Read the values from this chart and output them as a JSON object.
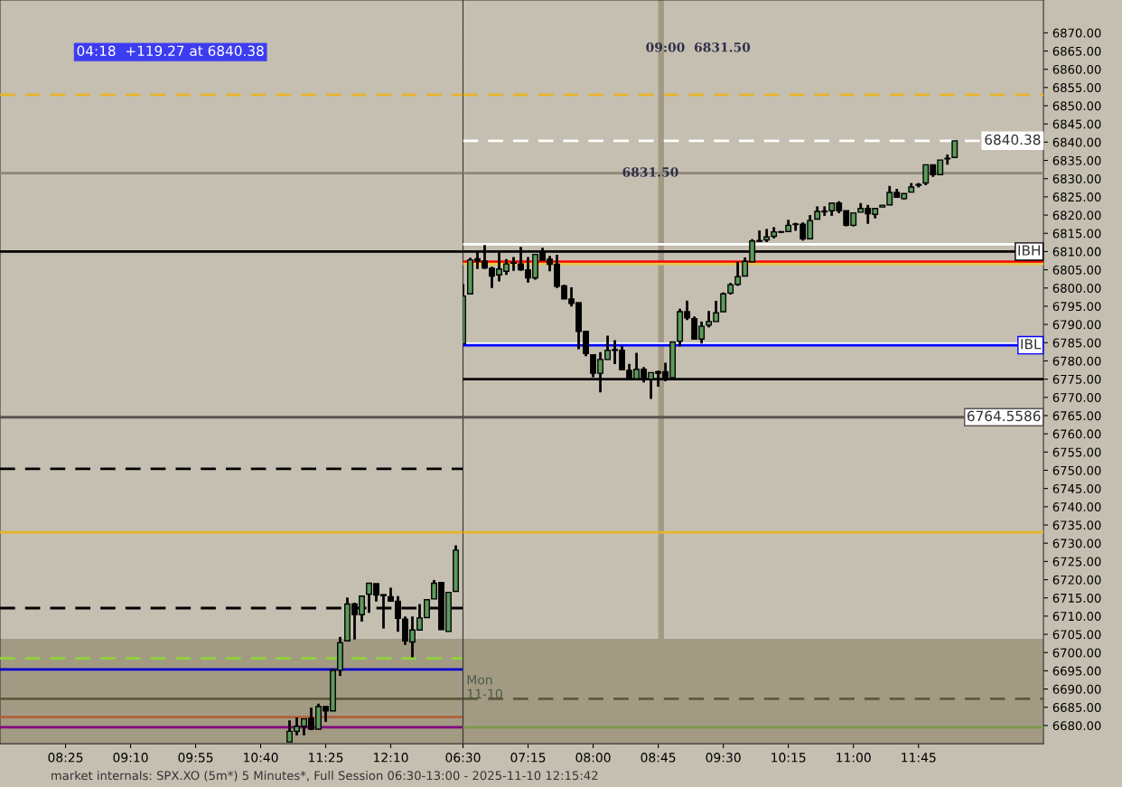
{
  "chart_data": [
    {
      "type": "candlestick",
      "annotations": [
        "04:18  +119.27 at 6840.38",
        "market internals: SPX.XO (5m*) 5 Minutes*, Full Session 06:30-13:00 - 2025-11-10 12:15:42"
      ],
      "tick_labels": "x",
      "colors": [
        "#5c9b5c",
        "#5c9b5c",
        "#5c9b5c",
        "#000000",
        "#5c9b5c",
        "#000000",
        "#5c9b5c",
        "#5c9b5c",
        "#5c9b5c",
        "#000000",
        "#5c9b5c",
        "#5c9b5c",
        "#000000",
        "#000000",
        "#000000",
        "#000000",
        "#000000",
        "#5c9b5c",
        "#5c9b5c",
        "#5c9b5c",
        "#5c9b5c",
        "#000000",
        "#5c9b5c",
        "#5c9b5c"
      ],
      "x": [
        11.0,
        11.0833,
        11.1667,
        11.25,
        11.3333,
        11.4167,
        11.5,
        11.5833,
        11.6667,
        11.75,
        11.8333,
        11.9167,
        12.0,
        12.0833,
        12.1667,
        12.25,
        12.3333,
        12.4167,
        12.5,
        12.5833,
        12.6667,
        12.75,
        12.8333,
        12.9167
      ],
      "ohlc": [
        [
          6675.5,
          6681.4,
          6675.5,
          6678.4
        ],
        [
          6678.4,
          6682.2,
          6677.3,
          6679.8
        ],
        [
          6679.8,
          6681.8,
          6677.3,
          6681.8
        ],
        [
          6682.0,
          6684.9,
          6678.8,
          6679.0
        ],
        [
          6679.0,
          6686.0,
          6679.0,
          6685.2
        ],
        [
          6685.2,
          6685.2,
          6681.0,
          6684.0
        ],
        [
          6684.0,
          6695.6,
          6684.0,
          6695.1
        ],
        [
          6695.2,
          6704.3,
          6693.6,
          6702.7
        ],
        [
          6703.2,
          6715.1,
          6703.2,
          6713.3
        ],
        [
          6713.3,
          6713.7,
          6703.6,
          6710.4
        ],
        [
          6710.4,
          6715.5,
          6708.5,
          6715.5
        ],
        [
          6716.0,
          6719.0,
          6710.9,
          6719.0
        ],
        [
          6718.9,
          6718.9,
          6714.0,
          6715.8
        ],
        [
          6715.9,
          6715.9,
          6706.6,
          6715.6
        ],
        [
          6715.3,
          6717.8,
          6714.1,
          6714.1
        ],
        [
          6714.1,
          6715.5,
          6705.7,
          6709.4
        ],
        [
          6709.2,
          6709.9,
          6702.1,
          6703.2
        ],
        [
          6702.9,
          6709.9,
          6698.7,
          6706.2
        ],
        [
          6706.2,
          6713.3,
          6706.2,
          6709.5
        ],
        [
          6709.6,
          6714.5,
          6709.6,
          6714.5
        ],
        [
          6714.7,
          6719.9,
          6714.7,
          6719.0
        ],
        [
          6719.2,
          6719.2,
          6706.3,
          6706.3
        ],
        [
          6705.8,
          6716.5,
          6705.8,
          6716.5
        ],
        [
          6716.8,
          6729.4,
          6716.8,
          6728.1
        ]
      ],
      "xlim": [
        7.661,
        13.0
      ],
      "xticks": [
        {
          "value": 8.4167,
          "label": "08:25"
        },
        {
          "value": 9.1667,
          "label": "09:10"
        },
        {
          "value": 9.9167,
          "label": "09:55"
        },
        {
          "value": 10.6667,
          "label": "10:40"
        },
        {
          "value": 11.4167,
          "label": "11:25"
        },
        {
          "value": 12.1667,
          "label": "12:10"
        }
      ],
      "ylim": [
        6675,
        6879
      ],
      "bands": [
        {
          "axis": "y",
          "from": 6675,
          "to": 6703.8,
          "color": "#a39a83"
        }
      ],
      "ref_lines": [
        {
          "axis": "y",
          "value": 6853,
          "color": "#e8b32a",
          "line_style": "dashed"
        },
        {
          "axis": "y",
          "value": 6831.5,
          "color": "#8e8778",
          "line_style": "solid"
        },
        {
          "axis": "y",
          "value": 6810,
          "color": "#000000",
          "line_style": "solid"
        },
        {
          "axis": "y",
          "value": 6764.5586,
          "color": "#5a5550",
          "line_style": "solid"
        },
        {
          "axis": "y",
          "value": 6750.4,
          "color": "#000000",
          "line_style": "dashed"
        },
        {
          "axis": "y",
          "value": 6733,
          "color": "#e8b32a",
          "line_style": "solid"
        },
        {
          "axis": "y",
          "value": 6712.2,
          "color": "#000000",
          "line_style": "dashed"
        },
        {
          "axis": "y",
          "value": 6698.4,
          "color": "#8fd43a",
          "line_style": "dashed"
        },
        {
          "axis": "y",
          "value": 6695.4,
          "color": "#0000cc",
          "line_style": "solid"
        },
        {
          "axis": "y",
          "value": 6687.3,
          "color": "#5e5a3a",
          "line_style": "solid"
        },
        {
          "axis": "y",
          "value": 6682.3,
          "color": "#b0603a",
          "line_style": "solid"
        },
        {
          "axis": "y",
          "value": 6679.5,
          "color": "#800080",
          "line_style": "solid"
        }
      ]
    },
    {
      "type": "candlestick",
      "annotations": [
        "09:00  6831.50",
        {
          "text": "6831.50",
          "x": 8.66,
          "y": 6831.5
        },
        "Mon\n11-10"
      ],
      "colors": [
        "#5c9b5c",
        "#5c9b5c",
        "#000000",
        "#000000",
        "#000000",
        "#5c9b5c",
        "#5c9b5c",
        "#000000",
        "#000000",
        "#000000",
        "#5c9b5c",
        "#000000",
        "#000000",
        "#000000",
        "#000000",
        "#000000",
        "#000000",
        "#000000",
        "#000000",
        "#5c9b5c",
        "#5c9b5c",
        "#000000",
        "#000000",
        "#000000",
        "#5c9b5c",
        "#000000",
        "#5c9b5c",
        "#000000",
        "#000000",
        "#5c9b5c",
        "#5c9b5c",
        "#000000",
        "#000000",
        "#5c9b5c",
        "#5c9b5c",
        "#5c9b5c",
        "#5c9b5c",
        "#5c9b5c",
        "#5c9b5c",
        "#5c9b5c",
        "#5c9b5c",
        "#000000",
        "#5c9b5c",
        "#5c9b5c",
        "#000000",
        "#5c9b5c",
        "#000000",
        "#000000",
        "#5c9b5c",
        "#5c9b5c",
        "#000000",
        "#5c9b5c",
        "#000000",
        "#000000",
        "#5c9b5c",
        "#5c9b5c",
        "#000000",
        "#5c9b5c",
        "#5c9b5c",
        "#5c9b5c",
        "#000000",
        "#5c9b5c",
        "#5c9b5c",
        "#5c9b5c",
        "#5c9b5c",
        "#000000",
        "#5c9b5c",
        "#000000",
        "#5c9b5c"
      ],
      "x": [
        6.5,
        6.5833,
        6.6667,
        6.75,
        6.8333,
        6.9167,
        7.0,
        7.0833,
        7.1667,
        7.25,
        7.3333,
        7.4167,
        7.5,
        7.5833,
        7.6667,
        7.75,
        7.8333,
        7.9167,
        8.0,
        8.0833,
        8.1667,
        8.25,
        8.3333,
        8.4167,
        8.5,
        8.5833,
        8.6667,
        8.75,
        8.8333,
        8.9167,
        9.0,
        9.0833,
        9.1667,
        9.25,
        9.3333,
        9.4167,
        9.5,
        9.5833,
        9.6667,
        9.75,
        9.8333,
        9.9167,
        10.0,
        10.0833,
        10.1667,
        10.25,
        10.3333,
        10.4167,
        10.5,
        10.5833,
        10.6667,
        10.75,
        10.8333,
        10.9167,
        11.0,
        11.0833,
        11.1667,
        11.25,
        11.3333,
        11.4167,
        11.5,
        11.5833,
        11.6667,
        11.75,
        11.8333,
        11.9167,
        12.0,
        12.0833,
        12.1667
      ],
      "ohlc": [
        [
          6784.7,
          6801.1,
          6784.7,
          6797.8
        ],
        [
          6798.4,
          6808.3,
          6798.4,
          6807.7
        ],
        [
          6808.0,
          6810.3,
          6805.2,
          6807.4
        ],
        [
          6807.4,
          6811.8,
          6805.2,
          6805.5
        ],
        [
          6805.4,
          6805.8,
          6800.0,
          6803.3
        ],
        [
          6803.6,
          6809.7,
          6801.8,
          6805.2
        ],
        [
          6804.6,
          6807.9,
          6803.6,
          6806.6
        ],
        [
          6807.0,
          6808.5,
          6804.7,
          6806.8
        ],
        [
          6806.6,
          6811.3,
          6804.7,
          6805.0
        ],
        [
          6805.0,
          6808.5,
          6801.5,
          6802.8
        ],
        [
          6802.8,
          6809.2,
          6802.3,
          6809.2
        ],
        [
          6809.7,
          6811.0,
          6807.6,
          6807.6
        ],
        [
          6807.9,
          6808.8,
          6804.6,
          6806.5
        ],
        [
          6806.5,
          6809.1,
          6800.0,
          6800.5
        ],
        [
          6800.6,
          6800.9,
          6797.0,
          6797.0
        ],
        [
          6797.0,
          6800.2,
          6794.9,
          6795.8
        ],
        [
          6796.0,
          6796.0,
          6783.2,
          6788.1
        ],
        [
          6788.1,
          6788.1,
          6781.3,
          6782.0
        ],
        [
          6781.7,
          6781.7,
          6775.5,
          6776.6
        ],
        [
          6776.6,
          6782.4,
          6771.4,
          6780.4
        ],
        [
          6780.4,
          6786.9,
          6780.4,
          6782.9
        ],
        [
          6783.1,
          6785.7,
          6779.1,
          6782.9
        ],
        [
          6782.9,
          6784.0,
          6777.6,
          6777.6
        ],
        [
          6777.4,
          6779.2,
          6775.1,
          6775.1
        ],
        [
          6775.1,
          6782.2,
          6775.1,
          6777.7
        ],
        [
          6777.7,
          6778.3,
          6774.1,
          6775.1
        ],
        [
          6775.0,
          6776.8,
          6769.6,
          6776.8
        ],
        [
          6777.0,
          6777.4,
          6772.9,
          6776.6
        ],
        [
          6777.0,
          6779.5,
          6774.4,
          6775.0
        ],
        [
          6775.4,
          6785.2,
          6775.4,
          6785.2
        ],
        [
          6785.4,
          6794.3,
          6784.0,
          6793.5
        ],
        [
          6793.5,
          6796.5,
          6791.2,
          6791.8
        ],
        [
          6791.6,
          6792.2,
          6786.0,
          6786.0
        ],
        [
          6786.0,
          6790.8,
          6784.8,
          6789.5
        ],
        [
          6789.8,
          6793.7,
          6789.2,
          6790.8
        ],
        [
          6790.8,
          6796.5,
          6790.8,
          6793.2
        ],
        [
          6793.5,
          6798.8,
          6793.5,
          6798.4
        ],
        [
          6798.6,
          6801.4,
          6798.2,
          6800.9
        ],
        [
          6801.0,
          6807.2,
          6800.6,
          6803.1
        ],
        [
          6803.3,
          6808.4,
          6803.3,
          6807.3
        ],
        [
          6807.2,
          6813.4,
          6807.2,
          6812.9
        ],
        [
          6813.0,
          6815.8,
          6812.7,
          6812.8
        ],
        [
          6813.2,
          6816.2,
          6812.6,
          6814.0
        ],
        [
          6814.2,
          6816.7,
          6813.6,
          6815.4
        ],
        [
          6815.4,
          6815.6,
          6815.1,
          6815.3
        ],
        [
          6815.5,
          6818.7,
          6815.5,
          6817.2
        ],
        [
          6817.5,
          6817.9,
          6815.7,
          6817.4
        ],
        [
          6817.5,
          6818.0,
          6813.0,
          6813.5
        ],
        [
          6813.5,
          6820.0,
          6813.5,
          6818.5
        ],
        [
          6818.9,
          6822.4,
          6818.9,
          6821.0
        ],
        [
          6821.1,
          6822.4,
          6819.8,
          6820.9
        ],
        [
          6821.2,
          6823.3,
          6819.8,
          6823.3
        ],
        [
          6823.3,
          6823.8,
          6820.5,
          6821.2
        ],
        [
          6821.2,
          6821.2,
          6816.9,
          6817.2
        ],
        [
          6817.2,
          6820.6,
          6816.9,
          6820.6
        ],
        [
          6820.8,
          6823.3,
          6820.8,
          6821.8
        ],
        [
          6821.8,
          6822.8,
          6817.6,
          6820.4
        ],
        [
          6820.2,
          6821.8,
          6819.1,
          6821.8
        ],
        [
          6822.2,
          6822.7,
          6822.2,
          6822.7
        ],
        [
          6822.8,
          6828.0,
          6822.8,
          6826.2
        ],
        [
          6826.2,
          6827.2,
          6824.9,
          6824.9
        ],
        [
          6824.5,
          6825.9,
          6824.3,
          6825.9
        ],
        [
          6826.3,
          6828.8,
          6826.3,
          6827.7
        ],
        [
          6828.2,
          6828.8,
          6827.6,
          6828.4
        ],
        [
          6828.8,
          6833.8,
          6828.2,
          6833.8
        ],
        [
          6833.8,
          6833.8,
          6830.5,
          6831.1
        ],
        [
          6831.1,
          6835.1,
          6831.1,
          6835.1
        ],
        [
          6835.6,
          6836.6,
          6833.8,
          6835.4
        ],
        [
          6835.8,
          6840.38,
          6835.8,
          6840.38
        ]
      ],
      "xlim": [
        6.5,
        13.19
      ],
      "xticks": [
        {
          "value": 6.5,
          "label": "06:30"
        },
        {
          "value": 7.25,
          "label": "07:15"
        },
        {
          "value": 8.0,
          "label": "08:00"
        },
        {
          "value": 8.75,
          "label": "08:45"
        },
        {
          "value": 9.5,
          "label": "09:30"
        },
        {
          "value": 10.25,
          "label": "10:15"
        },
        {
          "value": 11.0,
          "label": "11:00"
        },
        {
          "value": 11.75,
          "label": "11:45"
        }
      ],
      "ylim": [
        6675,
        6879
      ],
      "yticks": [
        {
          "value": 6680,
          "label": "6680.00"
        },
        {
          "value": 6685,
          "label": "6685.00"
        },
        {
          "value": 6690,
          "label": "6690.00"
        },
        {
          "value": 6695,
          "label": "6695.00"
        },
        {
          "value": 6700,
          "label": "6700.00"
        },
        {
          "value": 6705,
          "label": "6705.00"
        },
        {
          "value": 6710,
          "label": "6710.00"
        },
        {
          "value": 6715,
          "label": "6715.00"
        },
        {
          "value": 6720,
          "label": "6720.00"
        },
        {
          "value": 6725,
          "label": "6725.00"
        },
        {
          "value": 6730,
          "label": "6730.00"
        },
        {
          "value": 6735,
          "label": "6735.00"
        },
        {
          "value": 6740,
          "label": "6740.00"
        },
        {
          "value": 6745,
          "label": "6745.00"
        },
        {
          "value": 6750,
          "label": "6750.00"
        },
        {
          "value": 6755,
          "label": "6755.00"
        },
        {
          "value": 6760,
          "label": "6760.00"
        },
        {
          "value": 6765,
          "label": "6765.00"
        },
        {
          "value": 6770,
          "label": "6770.00"
        },
        {
          "value": 6775,
          "label": "6775.00"
        },
        {
          "value": 6780,
          "label": "6780.00"
        },
        {
          "value": 6785,
          "label": "6785.00"
        },
        {
          "value": 6790,
          "label": "6790.00"
        },
        {
          "value": 6795,
          "label": "6795.00"
        },
        {
          "value": 6800,
          "label": "6800.00"
        },
        {
          "value": 6805,
          "label": "6805.00"
        },
        {
          "value": 6810,
          "label": "6810.00"
        },
        {
          "value": 6815,
          "label": "6815.00"
        },
        {
          "value": 6820,
          "label": "6820.00"
        },
        {
          "value": 6825,
          "label": "6825.00"
        },
        {
          "value": 6830,
          "label": "6830.00"
        },
        {
          "value": 6835,
          "label": "6835.00"
        },
        {
          "value": 6840,
          "label": "6840.00"
        },
        {
          "value": 6845,
          "label": "6845.00"
        },
        {
          "value": 6850,
          "label": "6850.00"
        },
        {
          "value": 6855,
          "label": "6855.00"
        },
        {
          "value": 6860,
          "label": "6860.00"
        },
        {
          "value": 6865,
          "label": "6865.00"
        },
        {
          "value": 6870,
          "label": "6870.00"
        }
      ],
      "bands": [
        {
          "axis": "y",
          "from": 6675,
          "to": 6703.8,
          "color": "#a39a83"
        },
        {
          "axis": "x",
          "from": 8.75,
          "to": 8.8167,
          "color": "#a39a83"
        }
      ],
      "ref_lines": [
        {
          "axis": "y",
          "value": 6853,
          "color": "#e8b32a",
          "line_style": "dashed"
        },
        {
          "axis": "y",
          "value": 6840.38,
          "color": "#ffffff",
          "line_style": "dashed",
          "label": "6840.38"
        },
        {
          "axis": "y",
          "value": 6831.5,
          "color": "#8e8778",
          "line_style": "solid"
        },
        {
          "axis": "y",
          "value": 6812,
          "color": "#ffffff",
          "line_style": "solid"
        },
        {
          "axis": "y",
          "value": 6810,
          "color": "#000000",
          "line_style": "solid",
          "label": "IBH"
        },
        {
          "axis": "y",
          "value": 6807.2,
          "color": "#ff0000",
          "line_style": "solid"
        },
        {
          "axis": "y",
          "value": 6806.6,
          "color": "#e8c84a",
          "line_style": "solid"
        },
        {
          "axis": "y",
          "value": 6784.7,
          "color": "#ffffff",
          "line_style": "solid"
        },
        {
          "axis": "y",
          "value": 6784.3,
          "color": "#0000ff",
          "line_style": "solid",
          "label": "IBL"
        },
        {
          "axis": "y",
          "value": 6775,
          "color": "#000000",
          "line_style": "solid"
        },
        {
          "axis": "y",
          "value": 6764.5586,
          "color": "#5a5550",
          "line_style": "solid",
          "label": "6764.5586"
        },
        {
          "axis": "y",
          "value": 6733,
          "color": "#e8b32a",
          "line_style": "solid"
        },
        {
          "axis": "y",
          "value": 6687.3,
          "color": "#5e5a3a",
          "line_style": "dashed"
        },
        {
          "axis": "y",
          "value": 6679.5,
          "color": "#7a9a4a",
          "line_style": "solid"
        }
      ]
    }
  ]
}
